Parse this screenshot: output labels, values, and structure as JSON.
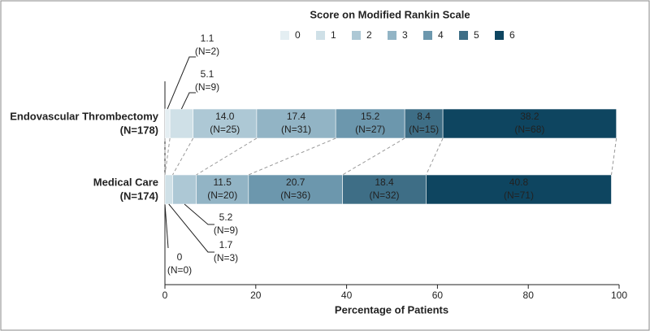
{
  "chart_data": {
    "type": "stacked-bar-horizontal",
    "legend_title": "Score on Modified Rankin Scale",
    "categories": [
      "Endovascular Thrombectomy",
      "Medical Care"
    ],
    "category_notes": [
      "(N=178)",
      "(N=174)"
    ],
    "series": [
      {
        "name": "0",
        "color": "#e4eef2",
        "values": [
          1.1,
          0
        ],
        "count_labels": [
          "(N=2)",
          "(N=0)"
        ]
      },
      {
        "name": "1",
        "color": "#cfe0e7",
        "values": [
          5.1,
          1.7
        ],
        "count_labels": [
          "(N=9)",
          "(N=3)"
        ]
      },
      {
        "name": "2",
        "color": "#adc8d5",
        "values": [
          14.0,
          5.2
        ],
        "value_labels": [
          "14.0",
          null
        ],
        "count_labels": [
          "(N=25)",
          "(N=9)"
        ]
      },
      {
        "name": "3",
        "color": "#92b4c5",
        "values": [
          17.4,
          11.5
        ],
        "count_labels": [
          "(N=31)",
          "(N=20)"
        ]
      },
      {
        "name": "4",
        "color": "#6c97ad",
        "values": [
          15.2,
          20.7
        ],
        "count_labels": [
          "(N=27)",
          "(N=36)"
        ]
      },
      {
        "name": "5",
        "color": "#3e6e86",
        "values": [
          8.4,
          18.4
        ],
        "count_labels": [
          "(N=15)",
          "(N=32)"
        ]
      },
      {
        "name": "6",
        "color": "#0e4560",
        "values": [
          38.2,
          40.8
        ],
        "count_labels": [
          "(N=68)",
          "(N=71)"
        ]
      }
    ],
    "xlabel": "Percentage of Patients",
    "xlim": [
      0,
      100
    ],
    "xticks": [
      0,
      20,
      40,
      60,
      80,
      100
    ]
  }
}
